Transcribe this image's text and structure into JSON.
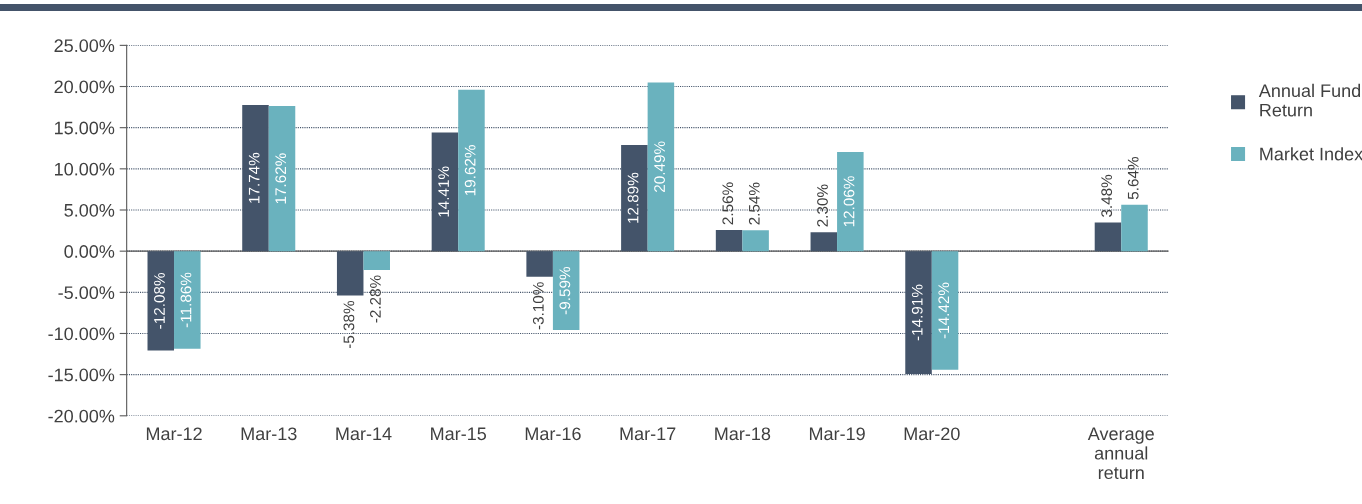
{
  "chart_data": {
    "type": "bar",
    "categories": [
      "Mar-12",
      "Mar-13",
      "Mar-14",
      "Mar-15",
      "Mar-16",
      "Mar-17",
      "Mar-18",
      "Mar-19",
      "Mar-20",
      null,
      "Average\nannual\nreturn"
    ],
    "series": [
      {
        "name": "Annual Fund\nReturn",
        "color": "#44546a",
        "values": [
          -12.08,
          17.74,
          -5.38,
          14.41,
          -3.1,
          12.89,
          2.56,
          2.3,
          -14.91,
          null,
          3.48
        ],
        "value_labels": [
          "-12.08%",
          "17.74%",
          "-5.38%",
          "14.41%",
          "-3.10%",
          "12.89%",
          "2.56%",
          "2.30%",
          "-14.91%",
          null,
          "3.48%"
        ]
      },
      {
        "name": "Market Index",
        "color": "#6ab2be",
        "values": [
          -11.86,
          17.62,
          -2.28,
          19.62,
          -9.59,
          20.49,
          2.54,
          12.06,
          -14.42,
          null,
          5.64
        ],
        "value_labels": [
          "-11.86%",
          "17.62%",
          "-2.28%",
          "19.62%",
          "-9.59%",
          "20.49%",
          "2.54%",
          "12.06%",
          "-14.42%",
          null,
          "5.64%"
        ]
      }
    ],
    "ylim": [
      -20,
      25
    ],
    "yticks": [
      {
        "value": -20,
        "label": "-20.00%"
      },
      {
        "value": -15,
        "label": "-15.00%"
      },
      {
        "value": -10,
        "label": "-10.00%"
      },
      {
        "value": -5,
        "label": "-5.00%"
      },
      {
        "value": 0,
        "label": "0.00%"
      },
      {
        "value": 5,
        "label": "5.00%"
      },
      {
        "value": 10,
        "label": "10.00%"
      },
      {
        "value": 15,
        "label": "15.00%"
      },
      {
        "value": 20,
        "label": "20.00%"
      },
      {
        "value": 25,
        "label": "25.00%"
      }
    ],
    "grid": "y",
    "legend": "right"
  }
}
